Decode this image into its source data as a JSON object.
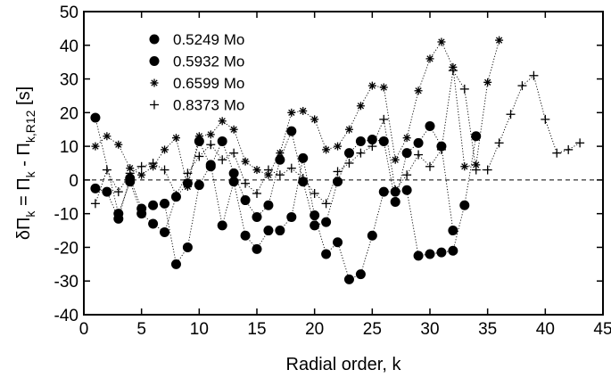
{
  "chart_data": {
    "type": "scatter",
    "xlabel": "Radial order, k",
    "ylabel_parts": {
      "delta": "δΠ",
      "k1": "k",
      "eq": " = Π",
      "k2": "k",
      "minus": " - Π",
      "sub": "k,R12",
      "unit": " [s]"
    },
    "xlim": [
      0,
      45
    ],
    "ylim": [
      -40,
      50
    ],
    "xticks": [
      0,
      5,
      10,
      15,
      20,
      25,
      30,
      35,
      40,
      45
    ],
    "yticks": [
      -40,
      -30,
      -20,
      -10,
      0,
      10,
      20,
      30,
      40,
      50
    ],
    "zero_line": true,
    "legend_position": "top-left",
    "series": [
      {
        "name": "0.5249 Mo",
        "marker": "circle",
        "x": [
          1,
          2,
          3,
          4,
          5,
          6,
          7,
          8,
          9,
          10,
          11,
          12,
          13,
          14,
          15,
          16,
          17,
          18,
          19,
          20,
          21,
          22,
          23,
          24,
          25,
          26,
          27,
          28,
          29,
          30,
          31,
          32,
          33,
          34
        ],
        "y": [
          -2.5,
          -3.5,
          -11.5,
          0.5,
          -8.5,
          -7.5,
          -7,
          -25,
          -20,
          -1.5,
          4.5,
          -13.5,
          -0.5,
          -16.5,
          -20.5,
          -15,
          -15,
          -11,
          6.5,
          -10.5,
          -22,
          -18.5,
          -29.5,
          -28,
          -16.5,
          -3.5,
          -3.5,
          -3,
          -22.5,
          -22,
          -21.5,
          -21,
          -7.5,
          13
        ]
      },
      {
        "name": "0.5932 Mo",
        "marker": "circle",
        "x": [
          1,
          3,
          4,
          5,
          6,
          7,
          8,
          9,
          10,
          11,
          12,
          13,
          14,
          15,
          16,
          17,
          18,
          19,
          20,
          21,
          22,
          23,
          24,
          25,
          26,
          27,
          28,
          29,
          30,
          31,
          32
        ],
        "y": [
          18.5,
          -10,
          -0.5,
          -10,
          -13,
          -15.5,
          -5,
          -1,
          11.5,
          4,
          11.5,
          2,
          -6,
          -11,
          -7.5,
          6,
          14.5,
          -0.5,
          -13.5,
          -12.5,
          -0.5,
          8,
          11.5,
          12,
          11.5,
          -6.5,
          8,
          11,
          16,
          10,
          -15
        ]
      },
      {
        "name": "0.6599 Mo",
        "marker": "asterisk",
        "x": [
          1,
          2,
          3,
          4,
          5,
          6,
          7,
          8,
          9,
          10,
          11,
          12,
          13,
          14,
          15,
          16,
          17,
          18,
          19,
          20,
          21,
          22,
          23,
          24,
          25,
          26,
          27,
          28,
          29,
          30,
          31,
          32,
          33,
          34,
          35,
          36
        ],
        "y": [
          10,
          13,
          10.5,
          3.5,
          1.5,
          4,
          9,
          12.5,
          -2,
          13,
          13.5,
          17.5,
          15,
          5.5,
          3,
          1.5,
          8,
          20,
          20.5,
          18,
          9,
          10,
          15,
          22,
          28,
          27.5,
          6,
          12.5,
          26.5,
          36,
          41,
          33.5,
          4,
          4.5,
          29,
          41.5
        ]
      },
      {
        "name": "0.8373 Mo",
        "marker": "plus",
        "x": [
          1,
          2,
          3,
          4,
          5,
          6,
          7,
          8,
          9,
          10,
          11,
          12,
          13,
          14,
          15,
          16,
          17,
          18,
          19,
          20,
          21,
          22,
          23,
          24,
          25,
          26,
          27,
          28,
          29,
          30,
          31,
          32,
          33,
          34,
          35,
          36,
          37,
          38,
          39,
          40,
          41,
          42,
          43
        ],
        "y": [
          -7,
          3,
          -3.5,
          2,
          4,
          5,
          3,
          -4.5,
          2,
          7,
          10.5,
          6,
          8,
          -1,
          -4,
          3,
          1.5,
          3.5,
          0.5,
          -4,
          -7,
          2.5,
          5,
          8,
          10,
          18,
          -3,
          1.5,
          7.5,
          4,
          9,
          32.5,
          27,
          3,
          3,
          11,
          19.5,
          28,
          31,
          18,
          8,
          9,
          11
        ]
      }
    ]
  }
}
